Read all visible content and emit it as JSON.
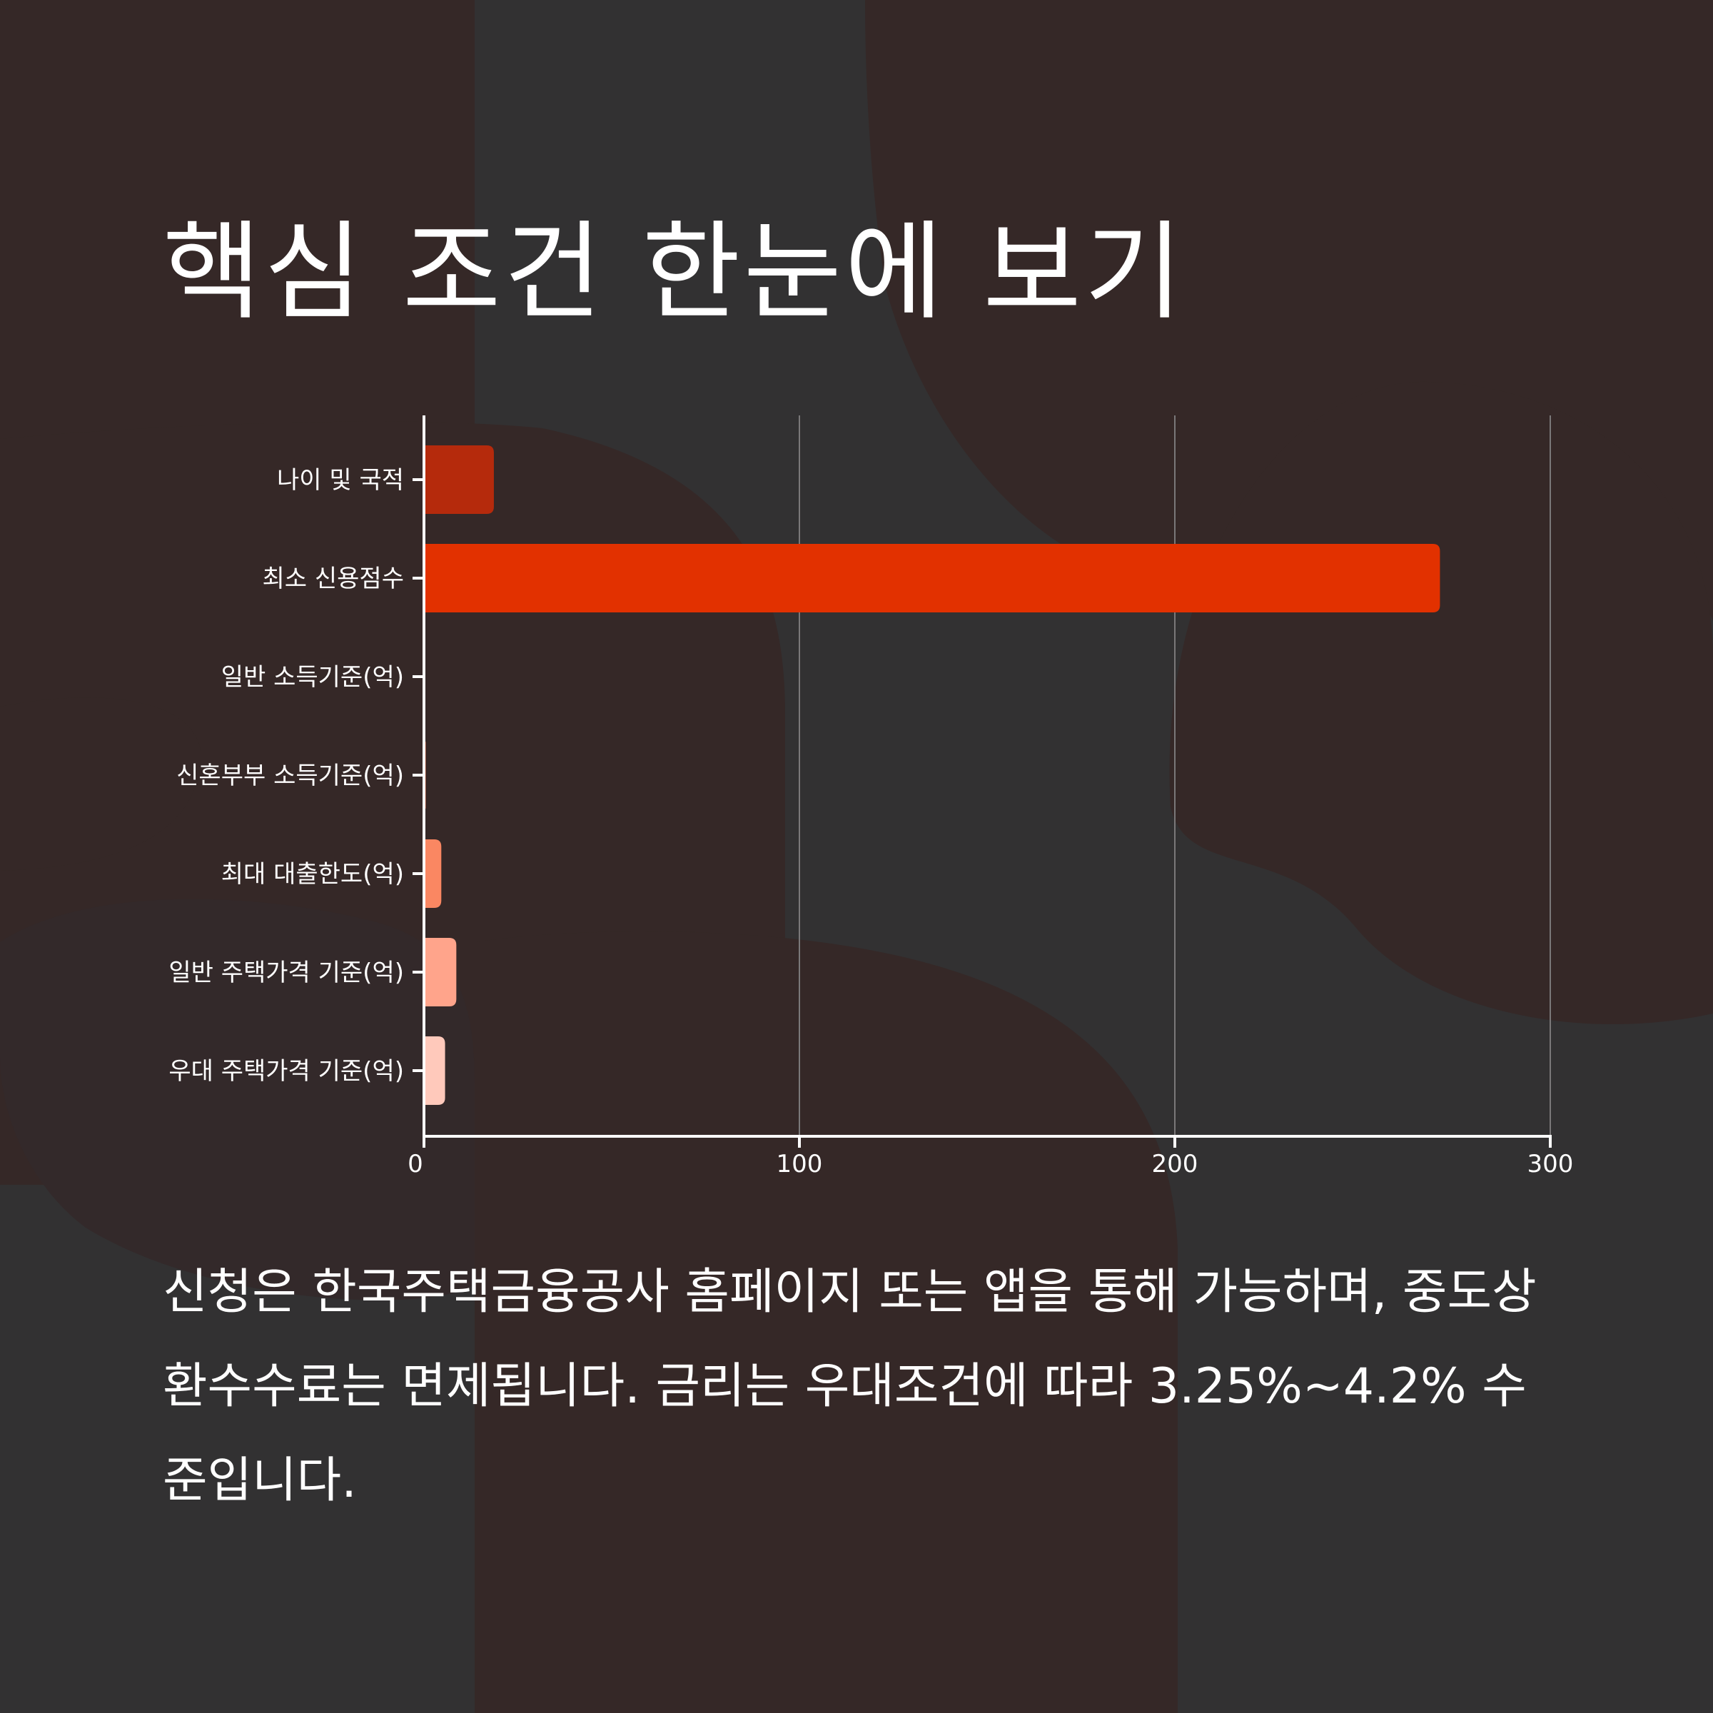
{
  "title": "핵심 조건 한눈에 보기",
  "description": "신청은 한국주택금융공사 홈페이지 또는 앱을 통해 가능하며, 중도상환수수료는 면제됩니다. 금리는 우대조건에 따라 3.25%~4.2% 수준입니다.",
  "colors": {
    "background": "#323132",
    "shape": "#352827",
    "text": "#ffffff"
  },
  "chart_data": {
    "type": "bar",
    "orientation": "horizontal",
    "categories": [
      "나이 및 국적",
      "최소 신용점수",
      "일반 소득기준(억)",
      "신혼부부 소득기준(억)",
      "최대 대출한도(억)",
      "일반 주택가격 기준(억)",
      "우대 주택가격 기준(억)"
    ],
    "values": [
      19,
      271,
      0.7,
      0.85,
      5,
      9,
      6
    ],
    "bar_colors": [
      "#b52a0c",
      "#e23100",
      "#e84a1c",
      "#ef6a3f",
      "#fa8762",
      "#ffa48b",
      "#ffc9bb"
    ],
    "xlim": [
      0,
      300
    ],
    "xticks": [
      0,
      100,
      200,
      300
    ],
    "grid": true,
    "xlabel": "",
    "ylabel": ""
  }
}
